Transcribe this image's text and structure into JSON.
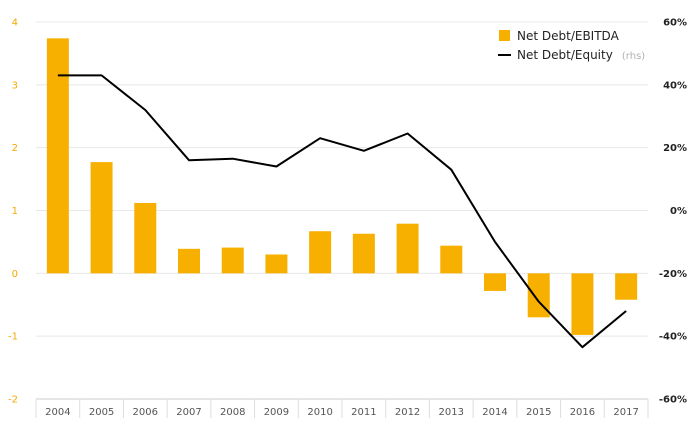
{
  "chart_data": {
    "type": "bar",
    "categories": [
      "2004",
      "2005",
      "2006",
      "2007",
      "2008",
      "2009",
      "2010",
      "2011",
      "2012",
      "2013",
      "2014",
      "2015",
      "2016",
      "2017"
    ],
    "series": [
      {
        "name": "Net Debt/EBITDA",
        "type": "bar",
        "axis": "left",
        "color": "#f8b000",
        "values": [
          3.74,
          1.77,
          1.12,
          0.39,
          0.41,
          0.3,
          0.67,
          0.63,
          0.79,
          0.44,
          -0.28,
          -0.7,
          -0.98,
          -0.42
        ]
      },
      {
        "name": "Net Debt/Equity",
        "name_suffix": "(rhs)",
        "type": "line",
        "axis": "right",
        "color": "#000000",
        "values": [
          43,
          43,
          32,
          16,
          16.5,
          14,
          23,
          19,
          24.5,
          13,
          -10,
          -29,
          -43.5,
          -32
        ]
      }
    ],
    "ylim": [
      -2,
      4
    ],
    "yticks": [
      "-2",
      "-1",
      "0",
      "1",
      "2",
      "3",
      "4"
    ],
    "y2lim": [
      -60,
      60
    ],
    "y2ticks": [
      "-60%",
      "-40%",
      "-20%",
      "0%",
      "20%",
      "40%",
      "60%"
    ],
    "grid": true,
    "legend_position": "top-right",
    "title": "",
    "xlabel": "",
    "ylabel": ""
  }
}
